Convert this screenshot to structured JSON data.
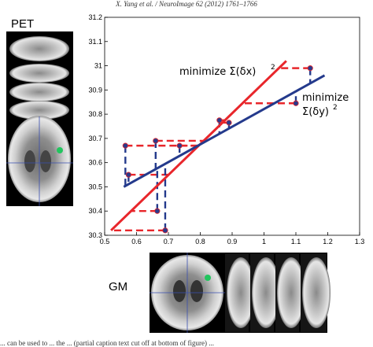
{
  "header": {
    "running_text": "X. Yang et al. / NeuroImage 62 (2012) 1761–1766"
  },
  "labels": {
    "pet": "PET",
    "gm": "GM"
  },
  "caption": "... can be used to ... the ... (partial caption text cut off at bottom of figure) ...",
  "chart_data": {
    "type": "scatter",
    "title": "",
    "xlabel": "",
    "ylabel": "",
    "xlim": [
      0.5,
      1.3
    ],
    "ylim": [
      30.3,
      31.2
    ],
    "x_ticks": [
      "0.5",
      "0.6",
      "0.7",
      "0.8",
      "0.9",
      "1",
      "1.1",
      "1.2",
      "1.3"
    ],
    "y_ticks": [
      "30.3",
      "30.4",
      "30.5",
      "30.6",
      "30.7",
      "30.8",
      "30.9",
      "31",
      "31.1",
      "31.2"
    ],
    "points": [
      {
        "x": 0.565,
        "y": 30.67
      },
      {
        "x": 0.575,
        "y": 30.55
      },
      {
        "x": 0.66,
        "y": 30.69
      },
      {
        "x": 0.665,
        "y": 30.4
      },
      {
        "x": 0.69,
        "y": 30.32
      },
      {
        "x": 0.735,
        "y": 30.67
      },
      {
        "x": 0.86,
        "y": 30.775
      },
      {
        "x": 0.89,
        "y": 30.765
      },
      {
        "x": 1.1,
        "y": 30.845
      },
      {
        "x": 1.145,
        "y": 30.99
      }
    ],
    "fits": [
      {
        "label_prefix": "minimize Σ(δx)",
        "superscript": "2",
        "color": "#e8262b",
        "x": [
          0.52,
          1.07
        ],
        "y": [
          30.32,
          31.02
        ]
      },
      {
        "label_prefix": "minimize",
        "label_line2": "Σ(δy)",
        "superscript": "2",
        "color": "#243a8c",
        "x": [
          0.56,
          1.19
        ],
        "y": [
          30.5,
          30.96
        ]
      }
    ],
    "colors": {
      "point": "#2c3a8a",
      "red": "#e8262b",
      "blue": "#243a8c"
    }
  }
}
